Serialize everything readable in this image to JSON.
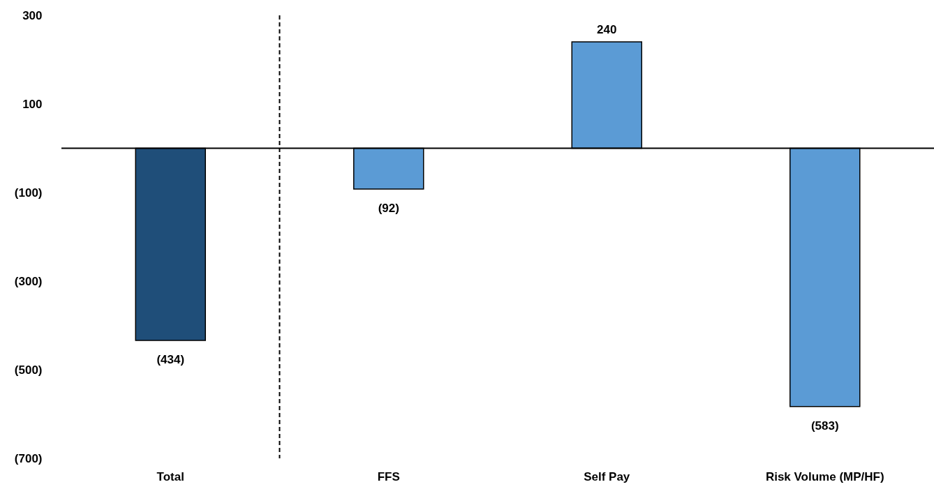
{
  "chart_data": {
    "type": "bar",
    "categories": [
      "Total",
      "FFS",
      "Self Pay",
      "Risk Volume (MP/HF)"
    ],
    "values": [
      -434,
      -92,
      240,
      -583
    ],
    "colors": [
      "#1f4e79",
      "#5b9bd5",
      "#5b9bd5",
      "#5b9bd5"
    ],
    "value_labels": [
      "(434)",
      "(92)",
      "240",
      "(583)"
    ],
    "ylim": [
      -700,
      300
    ],
    "yticks": [
      300,
      100,
      {
        "value": -100,
        "label": "(100)"
      },
      {
        "value": -300,
        "label": "(300)"
      },
      {
        "value": -500,
        "label": "(500)"
      },
      {
        "value": -700,
        "label": "(700)"
      }
    ],
    "grid": false
  }
}
